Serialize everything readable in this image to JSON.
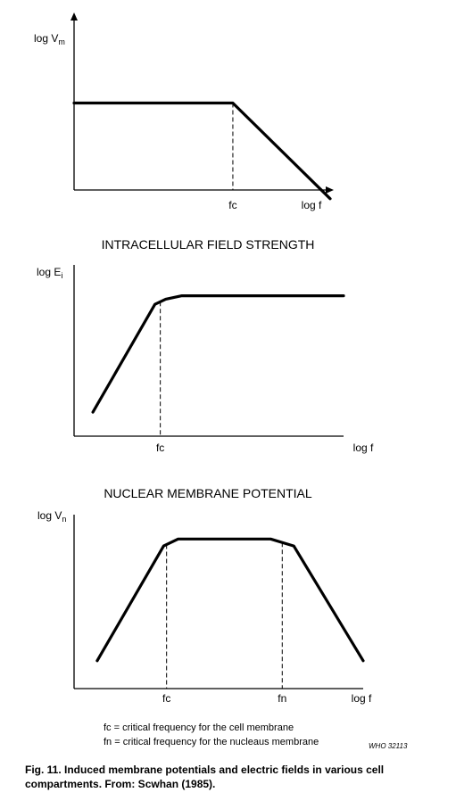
{
  "chart_data": [
    {
      "type": "line",
      "title": "",
      "ylabel": {
        "main": "log V",
        "sub": "m"
      },
      "xlabel": "log f",
      "markers": [
        {
          "label": "fc",
          "x": 0.62
        }
      ],
      "x": [
        0,
        0.62,
        1.0
      ],
      "y": [
        0.5,
        0.5,
        -0.05
      ],
      "xlim": [
        0,
        1.0
      ],
      "ylim": [
        0,
        1.0
      ],
      "axis_arrows": true
    },
    {
      "type": "line",
      "title": "INTRACELLULAR FIELD STRENGTH",
      "ylabel": {
        "main": "log E",
        "sub": "i"
      },
      "xlabel": "log f",
      "markers": [
        {
          "label": "fc",
          "x": 0.32
        }
      ],
      "x": [
        0.07,
        0.3,
        0.34,
        0.4,
        1.0
      ],
      "y": [
        0.14,
        0.77,
        0.8,
        0.82,
        0.82
      ],
      "xlim": [
        0,
        1.0
      ],
      "ylim": [
        0,
        1.0
      ],
      "axis_arrows": false
    },
    {
      "type": "line",
      "title": "NUCLEAR MEMBRANE POTENTIAL",
      "ylabel": {
        "main": "log V",
        "sub": "n"
      },
      "xlabel": "log f",
      "markers": [
        {
          "label": "fc",
          "x": 0.32
        },
        {
          "label": "fn",
          "x": 0.72
        }
      ],
      "x": [
        0.08,
        0.31,
        0.36,
        0.68,
        0.76,
        1.0
      ],
      "y": [
        0.16,
        0.82,
        0.86,
        0.86,
        0.82,
        0.16
      ],
      "xlim": [
        0,
        1.0
      ],
      "ylim": [
        0,
        1.0
      ],
      "axis_arrows": false
    }
  ],
  "legend_notes": [
    "fc = critical frequency for the cell membrane",
    "fn = critical frequency for the nucleaus membrane"
  ],
  "figure_code": "WHO 32113",
  "caption": "Fig. 11.  Induced membrane potentials and electric fields in various cell compartments.  From:  Scwhan (1985)."
}
